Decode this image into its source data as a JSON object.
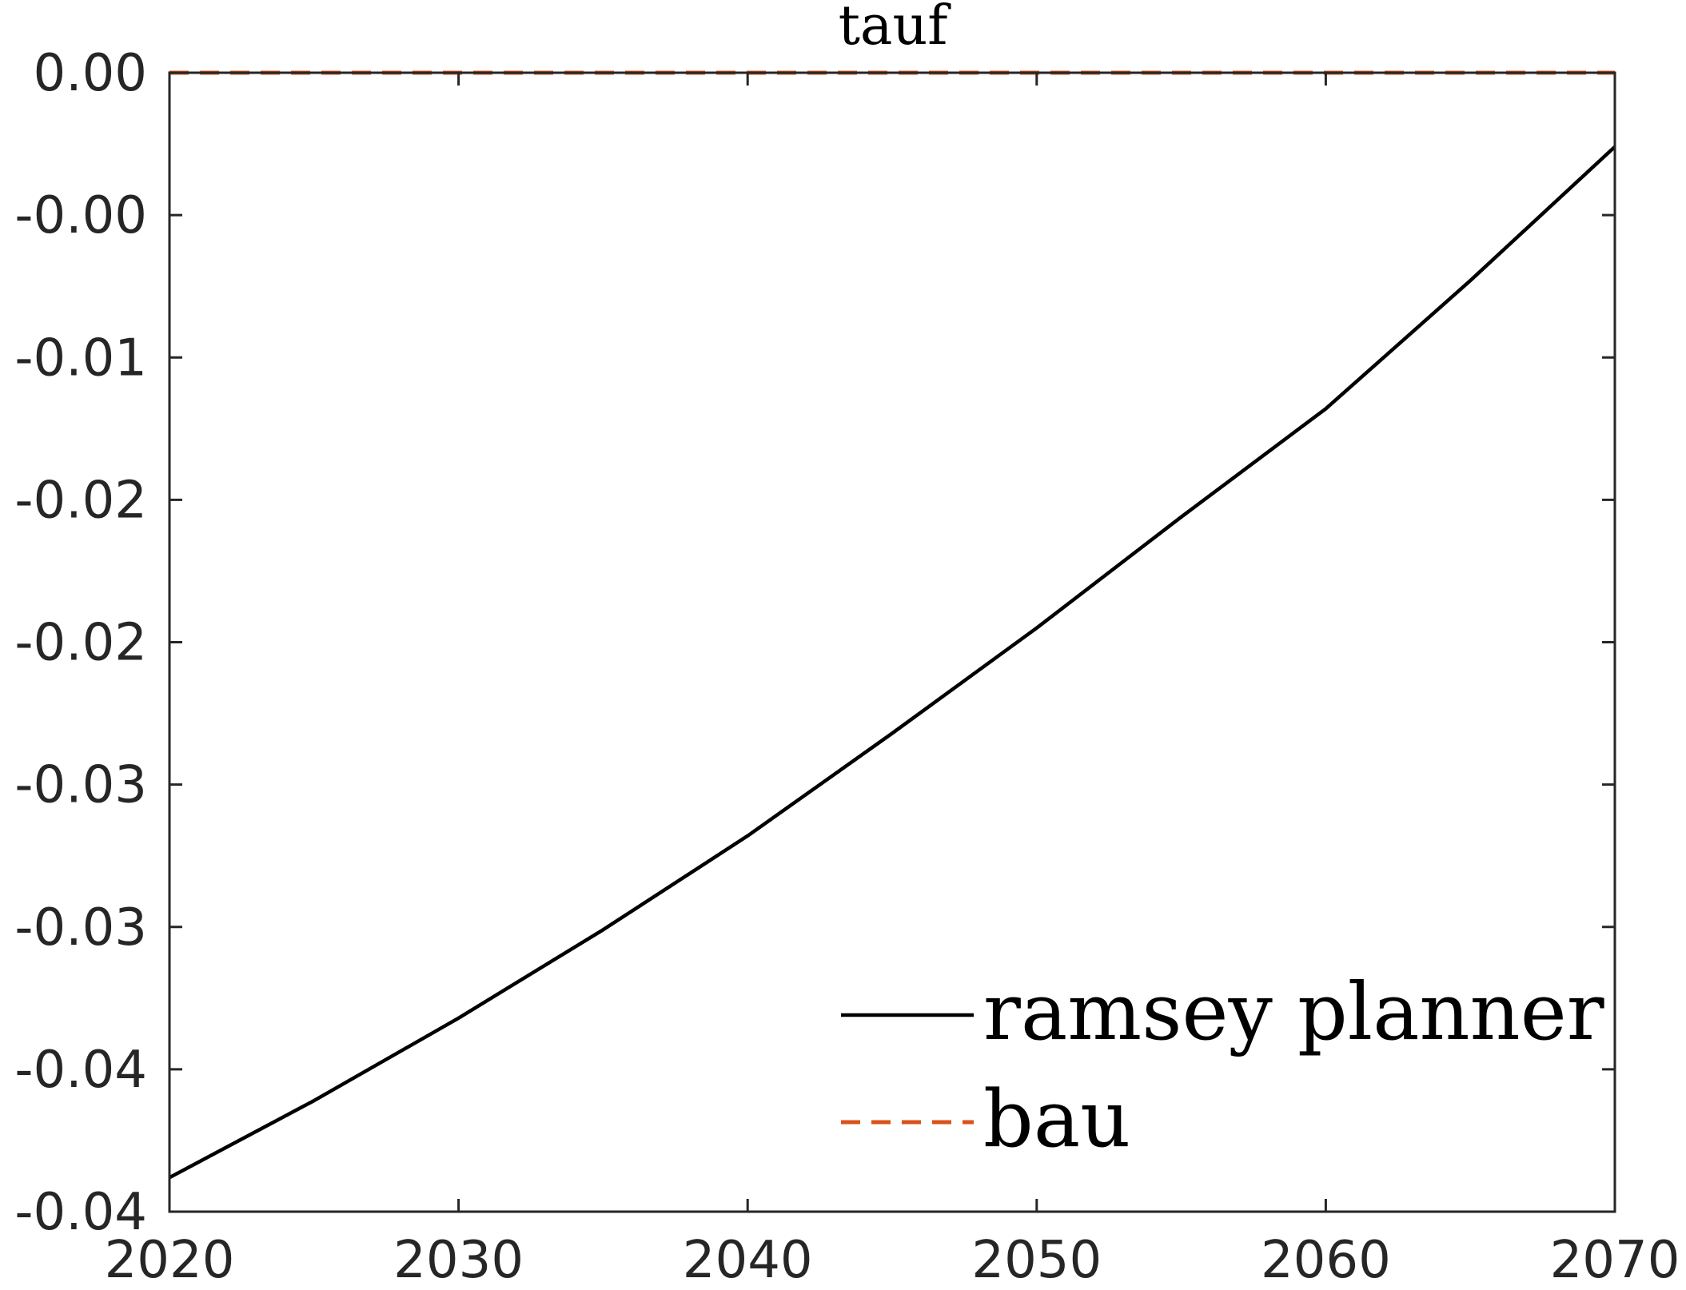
{
  "chart_data": {
    "type": "line",
    "title": "tauf",
    "xlabel": "",
    "ylabel": "",
    "xlim": [
      2020,
      2070
    ],
    "ylim": [
      -0.04,
      0.0
    ],
    "x_ticks": [
      2020,
      2030,
      2040,
      2050,
      2060,
      2070
    ],
    "x_tick_labels": [
      "2020",
      "2030",
      "2040",
      "2050",
      "2060",
      "2070"
    ],
    "y_ticks": [
      0.0,
      -0.005,
      -0.01,
      -0.015,
      -0.02,
      -0.025,
      -0.03,
      -0.035,
      -0.04
    ],
    "y_tick_labels": [
      "0.00",
      "-0.00",
      "-0.01",
      "-0.02",
      "-0.02",
      "-0.03",
      "-0.03",
      "-0.04",
      "-0.04"
    ],
    "grid": false,
    "legend_position": "bottom-right",
    "x": [
      2020,
      2025,
      2030,
      2035,
      2040,
      2045,
      2050,
      2055,
      2060,
      2065,
      2070
    ],
    "series": [
      {
        "name": "ramsey planner",
        "color": "#000000",
        "style": "solid",
        "values": [
          -0.0388,
          -0.0361,
          -0.0332,
          -0.0301,
          -0.0268,
          -0.0232,
          -0.0195,
          -0.0156,
          -0.0118,
          -0.0073,
          -0.0026
        ]
      },
      {
        "name": "bau",
        "color": "#D95319",
        "style": "dashed",
        "values": [
          0.0,
          0.0,
          0.0,
          0.0,
          0.0,
          0.0,
          0.0,
          0.0,
          0.0,
          0.0,
          0.0
        ]
      }
    ]
  }
}
